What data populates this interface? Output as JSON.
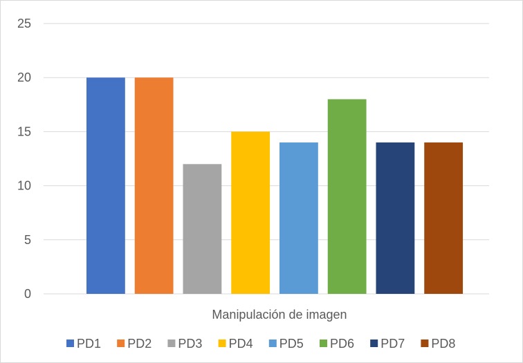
{
  "chart_data": {
    "type": "bar",
    "categories": [
      "Manipulación de imagen"
    ],
    "series": [
      {
        "name": "PD1",
        "values": [
          20
        ],
        "color": "#4472c4"
      },
      {
        "name": "PD2",
        "values": [
          20
        ],
        "color": "#ed7d31"
      },
      {
        "name": "PD3",
        "values": [
          12
        ],
        "color": "#a5a5a5"
      },
      {
        "name": "PD4",
        "values": [
          15
        ],
        "color": "#ffc000"
      },
      {
        "name": "PD5",
        "values": [
          14
        ],
        "color": "#5b9bd5"
      },
      {
        "name": "PD6",
        "values": [
          18
        ],
        "color": "#70ad47"
      },
      {
        "name": "PD7",
        "values": [
          14
        ],
        "color": "#264478"
      },
      {
        "name": "PD8",
        "values": [
          14
        ],
        "color": "#9e480e"
      }
    ],
    "xlabel": "Manipulación de imagen",
    "ylabel": "",
    "ylim": [
      0,
      25
    ],
    "yticks": [
      0,
      5,
      10,
      15,
      20,
      25
    ],
    "grid": true,
    "legend_position": "bottom"
  }
}
